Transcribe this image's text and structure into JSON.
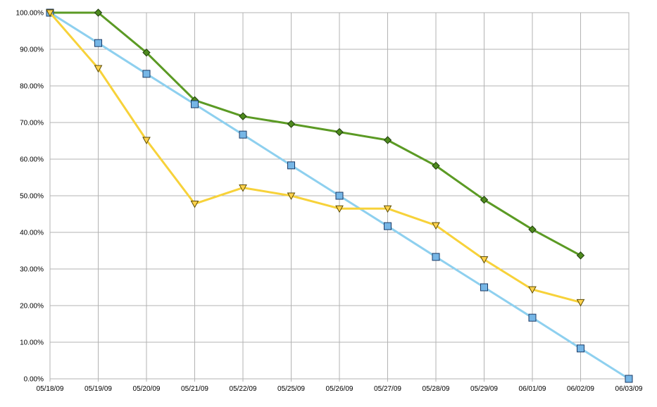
{
  "chart_data": {
    "type": "line",
    "title": "",
    "xlabel": "",
    "ylabel": "",
    "categories": [
      "05/18/09",
      "05/19/09",
      "05/20/09",
      "05/21/09",
      "05/22/09",
      "05/25/09",
      "05/26/09",
      "05/27/09",
      "05/28/09",
      "05/29/09",
      "06/01/09",
      "06/02/09",
      "06/03/09"
    ],
    "ylim": [
      0,
      100
    ],
    "yticks": [
      "0.00%",
      "10.00%",
      "20.00%",
      "30.00%",
      "40.00%",
      "50.00%",
      "60.00%",
      "70.00%",
      "80.00%",
      "90.00%",
      "100.00%"
    ],
    "grid": true,
    "legend": "none",
    "series": [
      {
        "marker": "diamond",
        "color": "#5b9a24",
        "marker_color": "#4e8a1e",
        "values": [
          100,
          100,
          89.1,
          76.1,
          71.7,
          69.6,
          67.4,
          65.2,
          58.2,
          48.9,
          40.8,
          33.7,
          null
        ]
      },
      {
        "marker": "square",
        "color": "#8ed0ef",
        "marker_color": "#76b6e6",
        "values": [
          100,
          91.7,
          83.3,
          75.0,
          66.7,
          58.3,
          50.0,
          41.7,
          33.3,
          25.0,
          16.7,
          8.3,
          0
        ]
      },
      {
        "marker": "triangle-down",
        "color": "#f7d23a",
        "marker_color": "#ffd24d",
        "values": [
          100,
          84.8,
          65.2,
          47.8,
          52.2,
          50.0,
          46.5,
          46.5,
          41.9,
          32.6,
          24.4,
          20.9,
          null
        ]
      }
    ]
  }
}
